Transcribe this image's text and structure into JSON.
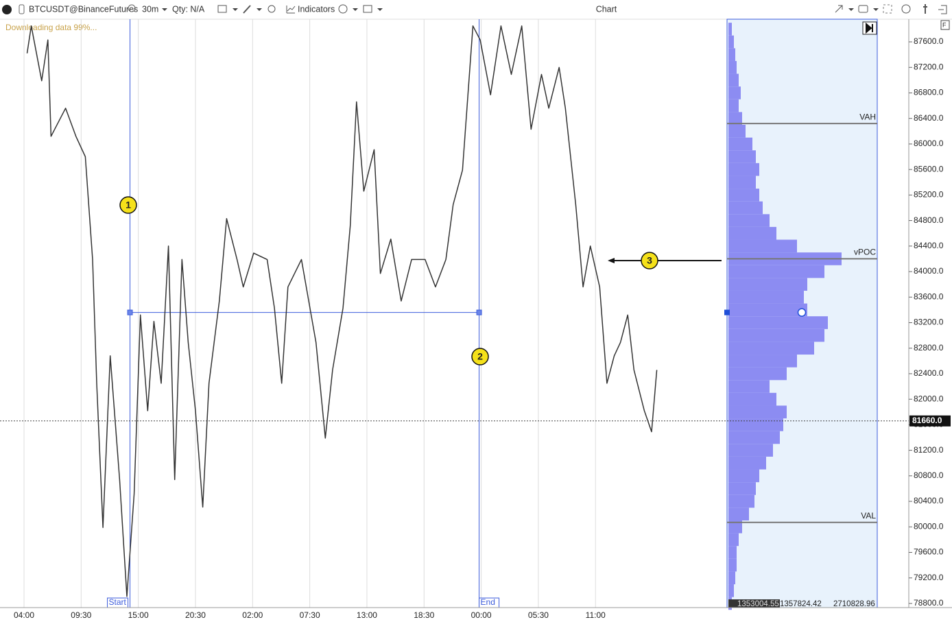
{
  "toolbar": {
    "symbol": "BTCUSDT@BinanceFutures",
    "interval": "30m",
    "qty": "Qty: N/A",
    "indicators": "Indicators",
    "title": "Chart",
    "f_button": "F"
  },
  "status": "Downloading data 99%...",
  "chart_data": {
    "type": "line",
    "color": "#333333",
    "x": [
      0.3,
      0.7,
      1.7,
      2.3,
      2.6,
      4.0,
      5.0,
      5.9,
      6.6,
      7.0,
      7.6,
      8.3,
      9.2,
      9.9,
      10.6,
      11.2,
      11.9,
      12.5,
      13.2,
      13.9,
      14.5,
      15.2,
      15.8,
      16.5,
      17.2,
      17.8,
      18.8,
      19.5,
      20.5,
      21.1,
      22.1,
      23.4,
      24.1,
      24.8,
      25.4,
      26.7,
      28.1,
      29.0,
      29.7,
      30.7,
      31.4,
      32.0,
      32.7,
      33.7,
      34.3,
      35.3,
      36.3,
      37.3,
      38.6,
      39.6,
      40.6,
      41.3,
      42.2,
      43.2,
      43.9,
      44.9,
      45.9,
      46.9,
      47.9,
      48.8,
      49.8,
      50.5,
      51.5,
      52.1,
      53.1,
      53.8,
      54.5,
      55.4,
      56.1,
      56.8,
      57.4,
      58.1,
      58.7,
      59.7,
      60.4,
      60.9
    ],
    "values": [
      87420,
      87850,
      86990,
      87630,
      86120,
      86560,
      86120,
      85800,
      84190,
      82250,
      79990,
      82680,
      80740,
      78910,
      80520,
      83320,
      81820,
      83220,
      82250,
      84400,
      80740,
      84190,
      82890,
      81820,
      80310,
      82250,
      83540,
      84830,
      84190,
      83760,
      84290,
      84190,
      83430,
      82250,
      83760,
      84190,
      82890,
      81390,
      82460,
      83430,
      84720,
      86660,
      85260,
      85910,
      83970,
      84510,
      83540,
      84190,
      84190,
      83760,
      84190,
      85050,
      85590,
      87850,
      87630,
      86770,
      87850,
      87090,
      87850,
      86230,
      87090,
      86560,
      87200,
      86560,
      85050,
      83760,
      84400,
      83760,
      82250,
      82680,
      82890,
      83320,
      82460,
      81820,
      81490,
      82460
    ],
    "xlim": [
      -2.31,
      85.15
    ],
    "xticks": [
      {
        "value": 0,
        "label": "04:00"
      },
      {
        "value": 5.5,
        "label": "09:30"
      },
      {
        "value": 11,
        "label": "15:00"
      },
      {
        "value": 16.5,
        "label": "20:30"
      },
      {
        "value": 22,
        "label": "02:00"
      },
      {
        "value": 27.5,
        "label": "07:30"
      },
      {
        "value": 33,
        "label": "13:00"
      },
      {
        "value": 38.5,
        "label": "18:30"
      },
      {
        "value": 44,
        "label": "00:00"
      },
      {
        "value": 49.5,
        "label": "05:30"
      },
      {
        "value": 55,
        "label": "11:00"
      }
    ],
    "ylim": [
      78735,
      87955
    ],
    "yticks": [
      {
        "value": 78800,
        "label": "78800.0"
      },
      {
        "value": 79200,
        "label": "79200.0"
      },
      {
        "value": 79600,
        "label": "79600.0"
      },
      {
        "value": 80000,
        "label": "80000.0"
      },
      {
        "value": 80400,
        "label": "80400.0"
      },
      {
        "value": 80800,
        "label": "80800.0"
      },
      {
        "value": 81200,
        "label": "81200.0"
      },
      {
        "value": 81600,
        "label": "81600.0"
      },
      {
        "value": 82000,
        "label": "82000.0"
      },
      {
        "value": 82400,
        "label": "82400.0"
      },
      {
        "value": 82800,
        "label": "82800.0"
      },
      {
        "value": 83200,
        "label": "83200.0"
      },
      {
        "value": 83600,
        "label": "83600.0"
      },
      {
        "value": 84000,
        "label": "84000.0"
      },
      {
        "value": 84400,
        "label": "84400.0"
      },
      {
        "value": 84800,
        "label": "84800.0"
      },
      {
        "value": 85200,
        "label": "85200.0"
      },
      {
        "value": 85600,
        "label": "85600.0"
      },
      {
        "value": 86000,
        "label": "86000.0"
      },
      {
        "value": 86400,
        "label": "86400.0"
      },
      {
        "value": 86800,
        "label": "86800.0"
      },
      {
        "value": 87200,
        "label": "87200.0"
      },
      {
        "value": 87600,
        "label": "87600.0"
      }
    ],
    "last_price": {
      "value": 81660,
      "label": "81660.0"
    },
    "range": {
      "start": 10.2,
      "end": 43.8,
      "price": 83360,
      "start_label": "Start",
      "end_label": "End"
    },
    "callouts": [
      "1",
      "2",
      "3"
    ]
  },
  "profile": {
    "color": "#8c8cf2",
    "levels": [
      78800,
      79000,
      79200,
      79400,
      79600,
      79800,
      80000,
      80200,
      80400,
      80600,
      80800,
      81000,
      81200,
      81400,
      81600,
      81800,
      82000,
      82200,
      82400,
      82600,
      82800,
      83000,
      83200,
      83400,
      83600,
      83800,
      84000,
      84200,
      84400,
      84600,
      84800,
      85000,
      85200,
      85400,
      85600,
      85800,
      86000,
      86200,
      86400,
      86600,
      86800,
      87000,
      87200,
      87400,
      87600,
      87800
    ],
    "volumes": [
      5,
      8,
      10,
      12,
      12,
      15,
      20,
      30,
      38,
      40,
      45,
      55,
      65,
      75,
      80,
      85,
      70,
      60,
      85,
      100,
      125,
      140,
      145,
      115,
      110,
      115,
      140,
      165,
      100,
      70,
      60,
      50,
      45,
      40,
      45,
      40,
      35,
      25,
      20,
      15,
      18,
      15,
      12,
      10,
      8,
      5
    ],
    "xlim": [
      0,
      217
    ],
    "lines": [
      {
        "label": "VAH",
        "value": 86320
      },
      {
        "label": "vPOC",
        "value": 84200
      },
      {
        "label": "VAL",
        "value": 80070
      }
    ],
    "totals": [
      "1353004.55",
      "1357824.42",
      "2710828.96"
    ]
  }
}
